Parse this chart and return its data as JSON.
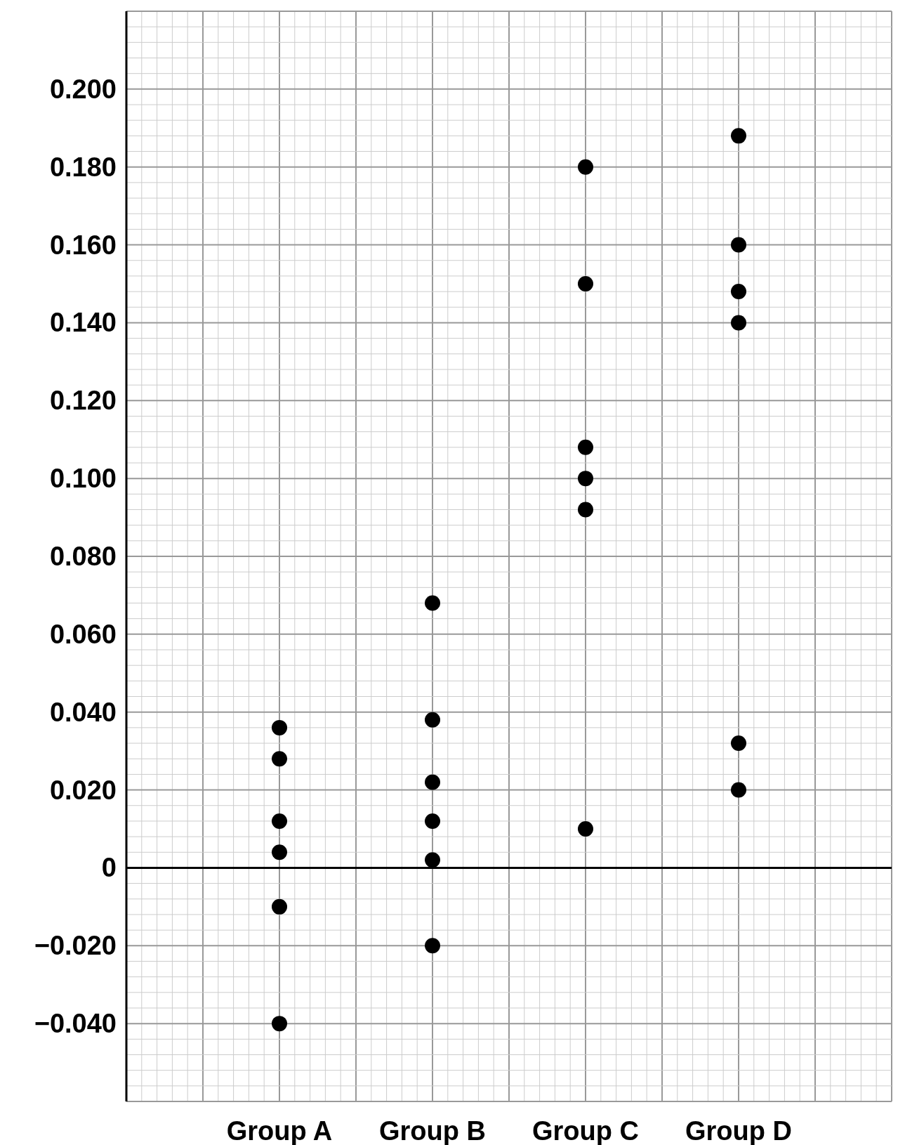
{
  "chart_data": {
    "type": "scatter",
    "categories": [
      "Group A",
      "Group B",
      "Group C",
      "Group D"
    ],
    "ylim": [
      -0.06,
      0.22
    ],
    "yticks": [
      {
        "value": -0.04,
        "label": "−0.040"
      },
      {
        "value": -0.02,
        "label": "−0.020"
      },
      0,
      {
        "value": 0.02,
        "label": "0.020"
      },
      {
        "value": 0.04,
        "label": "0.040"
      },
      {
        "value": 0.06,
        "label": "0.060"
      },
      {
        "value": 0.08,
        "label": "0.080"
      },
      {
        "value": 0.1,
        "label": "0.100"
      },
      {
        "value": 0.12,
        "label": "0.120"
      },
      {
        "value": 0.14,
        "label": "0.140"
      },
      {
        "value": 0.16,
        "label": "0.160"
      },
      {
        "value": 0.18,
        "label": "0.180"
      },
      {
        "value": 0.2,
        "label": "0.200"
      }
    ],
    "grid": true,
    "marker": "circle",
    "series": [
      {
        "color": "#000000",
        "x": [
          "Group A",
          "Group A",
          "Group A",
          "Group A",
          "Group A",
          "Group A",
          "Group B",
          "Group B",
          "Group B",
          "Group B",
          "Group B",
          "Group B",
          "Group C",
          "Group C",
          "Group C",
          "Group C",
          "Group C",
          "Group C",
          "Group D",
          "Group D",
          "Group D",
          "Group D",
          "Group D",
          "Group D"
        ],
        "values": [
          0.036,
          0.028,
          0.012,
          0.004,
          -0.01,
          -0.04,
          0.068,
          0.038,
          0.022,
          0.012,
          0.002,
          -0.02,
          0.18,
          0.15,
          0.108,
          0.1,
          0.092,
          0.01,
          0.188,
          0.16,
          0.148,
          0.14,
          0.032,
          0.02
        ]
      }
    ]
  }
}
